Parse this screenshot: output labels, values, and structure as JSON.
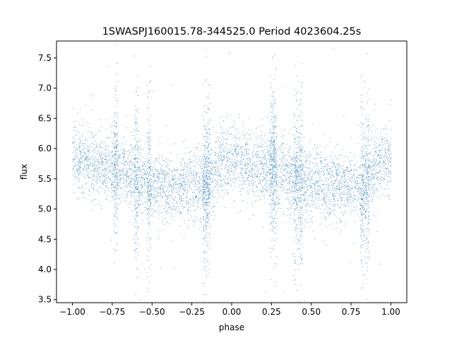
{
  "chart_data": {
    "type": "scatter",
    "title": "1SWASPJ160015.78-344525.0 Period 4023604.25s",
    "xlabel": "phase",
    "ylabel": "flux",
    "xlim": [
      -1.1,
      1.1
    ],
    "ylim": [
      3.45,
      7.78
    ],
    "x_ticks": [
      -1.0,
      -0.75,
      -0.5,
      -0.25,
      0.0,
      0.25,
      0.5,
      0.75,
      1.0
    ],
    "x_tick_labels": [
      "−1.00",
      "−0.75",
      "−0.50",
      "−0.25",
      "0.00",
      "0.25",
      "0.50",
      "0.75",
      "1.00"
    ],
    "y_ticks": [
      3.5,
      4.0,
      4.5,
      5.0,
      5.5,
      6.0,
      6.5,
      7.0,
      7.5
    ],
    "y_tick_labels": [
      "3.5",
      "4.0",
      "4.5",
      "5.0",
      "5.5",
      "6.0",
      "6.5",
      "7.0",
      "7.5"
    ],
    "grid": false,
    "legend": "none",
    "marker_color": "#1f77b4",
    "phase_range": [
      -1.0,
      1.0
    ],
    "mean_flux_profile": {
      "phase": [
        0.0,
        0.05,
        0.1,
        0.15,
        0.2,
        0.25,
        0.3,
        0.35,
        0.4,
        0.45,
        0.5,
        0.55,
        0.6,
        0.65,
        0.7,
        0.75,
        0.8,
        0.85,
        0.9,
        0.95,
        1.0
      ],
      "flux": [
        5.85,
        5.8,
        5.75,
        5.72,
        5.7,
        5.68,
        5.65,
        5.55,
        5.5,
        5.45,
        5.4,
        5.45,
        5.4,
        5.35,
        5.4,
        5.45,
        5.35,
        5.4,
        5.7,
        5.85,
        5.85
      ]
    },
    "flux_scatter_sigma": 0.28,
    "vertical_streak_phases": [
      -0.73,
      -0.6,
      -0.52,
      -0.17,
      -0.15,
      0.25,
      0.27,
      0.4,
      0.43,
      0.82,
      0.85
    ]
  }
}
